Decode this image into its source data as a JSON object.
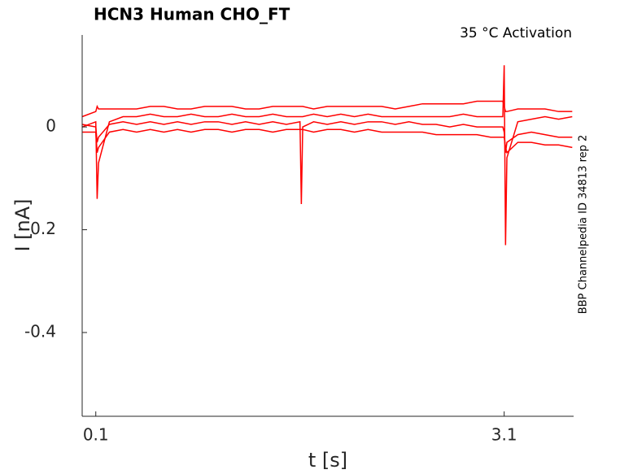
{
  "chart_data": {
    "type": "line",
    "title": "HCN3  Human  CHO_FT",
    "annotation": "35 °C  Activation",
    "side_label": "BBP Channelpedia ID 34813 rep 2",
    "xlabel": "t [s]",
    "ylabel": "I [nA]",
    "xlim": [
      0,
      3.61
    ],
    "ylim": [
      -0.563,
      0.179
    ],
    "xticks": [
      0.1,
      3.1
    ],
    "yticks": [
      -0.4,
      -0.2,
      0
    ],
    "x": [
      0,
      0.1,
      0.11,
      0.12,
      0.2,
      0.3,
      0.4,
      0.5,
      0.6,
      0.7,
      0.8,
      0.9,
      1.0,
      1.1,
      1.2,
      1.3,
      1.4,
      1.5,
      1.6,
      1.61,
      1.62,
      1.7,
      1.8,
      1.9,
      2.0,
      2.1,
      2.2,
      2.3,
      2.4,
      2.5,
      2.6,
      2.7,
      2.8,
      2.9,
      3.0,
      3.09,
      3.1,
      3.11,
      3.12,
      3.2,
      3.3,
      3.4,
      3.5,
      3.6
    ],
    "series": [
      {
        "color": "#ff0000",
        "values": [
          0.02,
          0.03,
          0.04,
          0.035,
          0.035,
          0.035,
          0.035,
          0.04,
          0.04,
          0.035,
          0.035,
          0.04,
          0.04,
          0.04,
          0.035,
          0.035,
          0.04,
          0.04,
          0.04,
          0.04,
          0.04,
          0.035,
          0.04,
          0.04,
          0.04,
          0.04,
          0.04,
          0.035,
          0.04,
          0.045,
          0.045,
          0.045,
          0.045,
          0.05,
          0.05,
          0.05,
          0.04,
          0.03,
          0.03,
          0.035,
          0.035,
          0.035,
          0.03,
          0.03
        ]
      },
      {
        "color": "#ff0000",
        "values": [
          0.0,
          0.01,
          -0.14,
          -0.07,
          0.01,
          0.02,
          0.02,
          0.025,
          0.02,
          0.02,
          0.025,
          0.02,
          0.02,
          0.025,
          0.02,
          0.02,
          0.025,
          0.02,
          0.02,
          0.02,
          0.02,
          0.025,
          0.02,
          0.025,
          0.02,
          0.025,
          0.02,
          0.02,
          0.02,
          0.02,
          0.02,
          0.02,
          0.025,
          0.02,
          0.02,
          0.02,
          0.12,
          -0.23,
          -0.06,
          0.01,
          0.015,
          0.02,
          0.015,
          0.02
        ]
      },
      {
        "color": "#ff0000",
        "values": [
          0.005,
          0.0,
          -0.03,
          -0.02,
          0.005,
          0.01,
          0.005,
          0.01,
          0.005,
          0.01,
          0.005,
          0.01,
          0.01,
          0.005,
          0.01,
          0.005,
          0.01,
          0.005,
          0.01,
          -0.15,
          0.0,
          0.01,
          0.005,
          0.01,
          0.005,
          0.01,
          0.01,
          0.005,
          0.01,
          0.005,
          0.005,
          0.0,
          0.005,
          0.0,
          0.0,
          0.0,
          -0.01,
          -0.05,
          -0.03,
          -0.015,
          -0.01,
          -0.015,
          -0.02,
          -0.02
        ]
      },
      {
        "color": "#ff0000",
        "values": [
          -0.01,
          -0.01,
          -0.05,
          -0.04,
          -0.01,
          -0.005,
          -0.01,
          -0.005,
          -0.01,
          -0.005,
          -0.01,
          -0.005,
          -0.005,
          -0.01,
          -0.005,
          -0.005,
          -0.01,
          -0.005,
          -0.005,
          -0.005,
          -0.005,
          -0.01,
          -0.005,
          -0.005,
          -0.01,
          -0.005,
          -0.01,
          -0.01,
          -0.01,
          -0.01,
          -0.015,
          -0.015,
          -0.015,
          -0.015,
          -0.02,
          -0.02,
          -0.02,
          -0.04,
          -0.05,
          -0.03,
          -0.03,
          -0.035,
          -0.035,
          -0.04
        ]
      }
    ]
  }
}
